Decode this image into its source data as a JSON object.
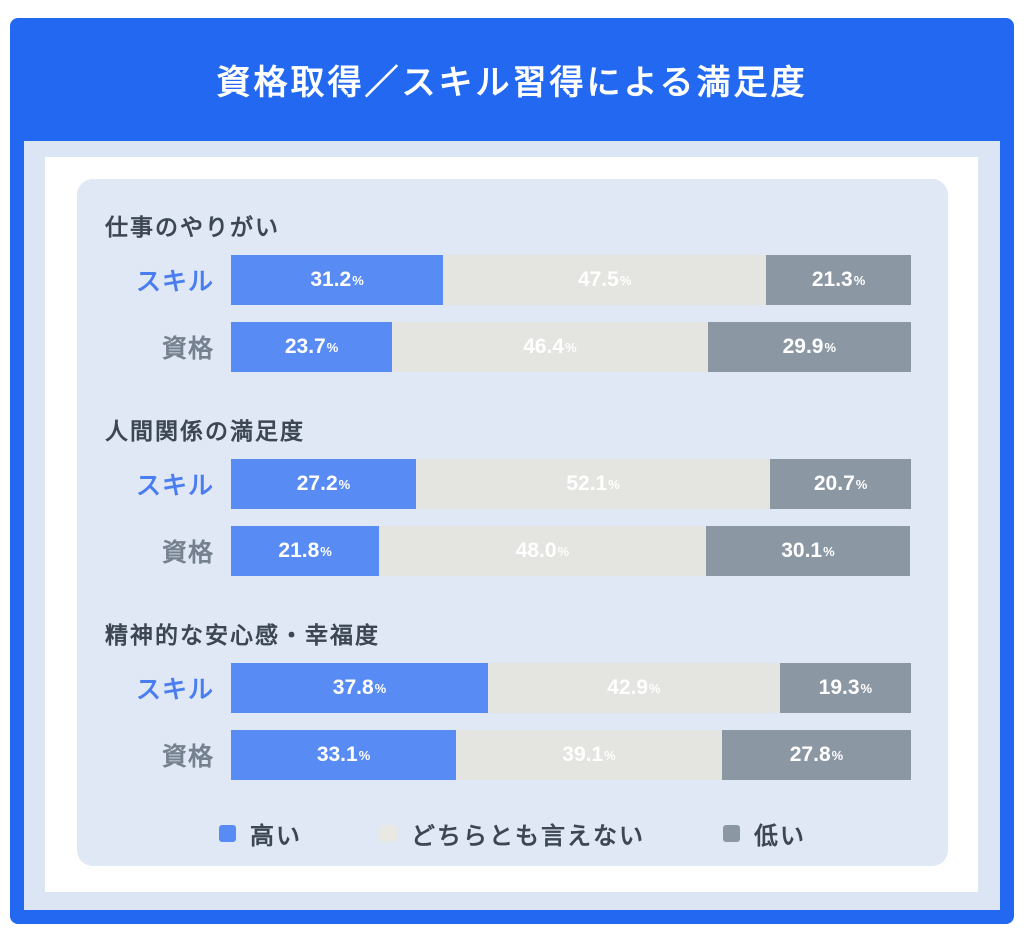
{
  "title": "資格取得／スキル習得による満足度",
  "colors": {
    "frame_blue": "#2368f0",
    "panel_bg": "#dfe8f4",
    "high": "#588bf4",
    "neutral": "#e4e4e0",
    "low": "#8c97a4",
    "skill_label": "#4a7df0",
    "shikaku_label": "#76818f",
    "heading_text": "#3d4753"
  },
  "legend": [
    {
      "name": "high",
      "label": "高い",
      "color": "#588bf4"
    },
    {
      "name": "neutral",
      "label": "どちらとも言えない",
      "color": "#e9e8e3"
    },
    {
      "name": "low",
      "label": "低い",
      "color": "#8c97a4"
    }
  ],
  "chart_data": {
    "type": "bar",
    "orientation": "horizontal",
    "stacked": true,
    "unit": "%",
    "title": "資格取得／スキル習得による満足度",
    "series_labels": [
      "高い",
      "どちらとも言えない",
      "低い"
    ],
    "segment_colors": [
      "#588bf4",
      "#e4e4e0",
      "#8c97a4"
    ],
    "value_range": [
      0,
      100
    ],
    "legend_position": "bottom",
    "grid": false,
    "groups": [
      {
        "category": "仕事のやりがい",
        "rows": [
          {
            "label": "スキル",
            "style": "skill",
            "values": [
              31.2,
              47.5,
              21.3
            ]
          },
          {
            "label": "資格",
            "style": "shikaku",
            "values": [
              23.7,
              46.4,
              29.9
            ]
          }
        ]
      },
      {
        "category": "人間関係の満足度",
        "rows": [
          {
            "label": "スキル",
            "style": "skill",
            "values": [
              27.2,
              52.1,
              20.7
            ]
          },
          {
            "label": "資格",
            "style": "shikaku",
            "values": [
              21.8,
              48.0,
              30.1
            ]
          }
        ]
      },
      {
        "category": "精神的な安心感・幸福度",
        "rows": [
          {
            "label": "スキル",
            "style": "skill",
            "values": [
              37.8,
              42.9,
              19.3
            ]
          },
          {
            "label": "資格",
            "style": "shikaku",
            "values": [
              33.1,
              39.1,
              27.8
            ]
          }
        ]
      }
    ]
  }
}
